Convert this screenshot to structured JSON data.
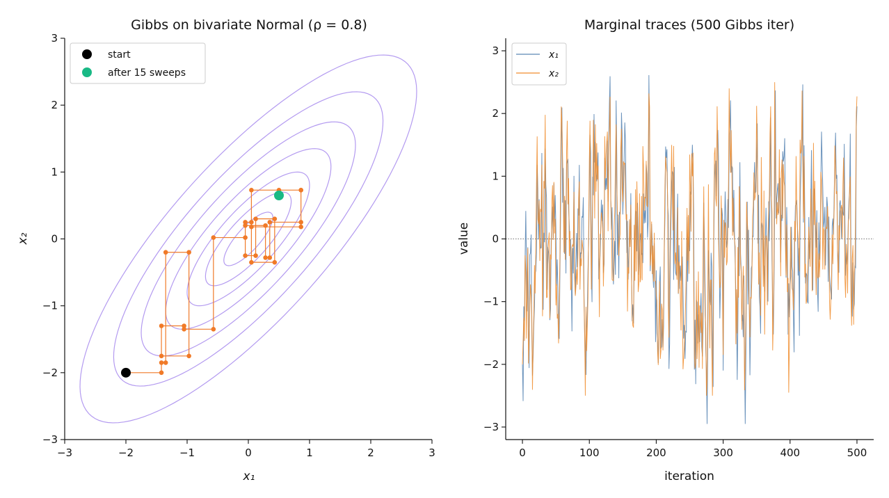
{
  "chart_data": [
    {
      "type": "scatter",
      "title": "Gibbs on bivariate Normal (ρ = 0.8)",
      "xlabel": "x₁",
      "ylabel": "x₂",
      "xlim": [
        -3,
        3
      ],
      "ylim": [
        -3,
        3
      ],
      "xticks": [
        "−3",
        "−2",
        "−1",
        "0",
        "1",
        "2",
        "3"
      ],
      "yticks": [
        "−3",
        "−2",
        "−1",
        "0",
        "1",
        "2",
        "3"
      ],
      "grid": false,
      "legend_position": "top-left",
      "legend": [
        "start",
        "after 15 sweeps"
      ],
      "rho": 0.8,
      "contour_color": "#b39af0",
      "path_color": "#f07a28",
      "start_color": "#000000",
      "end_color": "#19b985",
      "start": [
        -2.0,
        -2.0
      ],
      "end": [
        0.5,
        0.65
      ],
      "path": [
        [
          -2.0,
          -2.0
        ],
        [
          -1.42,
          -2.0
        ],
        [
          -1.42,
          -1.85
        ],
        [
          -1.35,
          -1.85
        ],
        [
          -1.35,
          -0.2
        ],
        [
          -0.97,
          -0.2
        ],
        [
          -0.97,
          -1.75
        ],
        [
          -1.42,
          -1.75
        ],
        [
          -1.42,
          -1.3
        ],
        [
          -1.05,
          -1.3
        ],
        [
          -1.05,
          -1.35
        ],
        [
          -0.57,
          -1.35
        ],
        [
          -0.57,
          0.02
        ],
        [
          -0.05,
          0.02
        ],
        [
          -0.05,
          0.25
        ],
        [
          0.05,
          0.25
        ],
        [
          0.05,
          -0.35
        ],
        [
          0.43,
          -0.35
        ],
        [
          0.43,
          0.3
        ],
        [
          0.12,
          0.3
        ],
        [
          0.12,
          -0.25
        ],
        [
          -0.05,
          -0.25
        ],
        [
          -0.05,
          0.2
        ],
        [
          0.28,
          0.2
        ],
        [
          0.28,
          -0.28
        ],
        [
          0.35,
          -0.28
        ],
        [
          0.35,
          0.25
        ],
        [
          0.86,
          0.25
        ],
        [
          0.86,
          0.73
        ],
        [
          0.05,
          0.73
        ],
        [
          0.05,
          0.18
        ],
        [
          0.86,
          0.18
        ],
        [
          0.86,
          0.73
        ],
        [
          0.5,
          0.73
        ],
        [
          0.5,
          0.65
        ]
      ]
    },
    {
      "type": "line",
      "title": "Marginal traces (500 Gibbs iter)",
      "xlabel": "iteration",
      "ylabel": "value",
      "xlim": [
        -25,
        525
      ],
      "ylim": [
        -3.2,
        3.2
      ],
      "xticks": [
        0,
        100,
        200,
        300,
        400,
        500
      ],
      "yticks": [
        "−3",
        "−2",
        "−1",
        "0",
        "1",
        "2",
        "3"
      ],
      "grid": false,
      "legend_position": "top-left",
      "reference_line_y": 0,
      "n_iter": 500,
      "series": [
        {
          "name": "x₁",
          "color": "#5b87b5",
          "start_value": -2.0,
          "min": -2.95,
          "max": 2.9
        },
        {
          "name": "x₂",
          "color": "#f08c2c",
          "start_value": -2.0,
          "min": -2.5,
          "max": 2.5
        }
      ]
    }
  ]
}
